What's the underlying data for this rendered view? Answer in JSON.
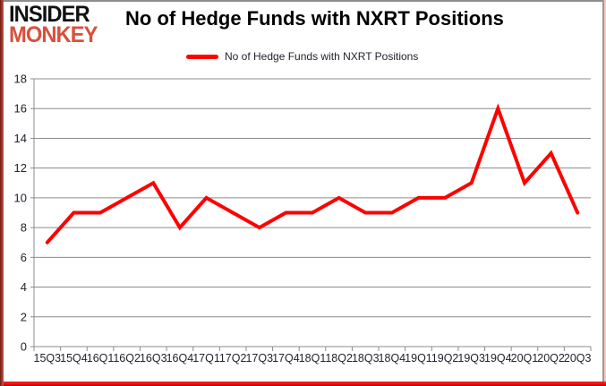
{
  "logo": {
    "line1": "INSIDER",
    "line2": "MONKEY"
  },
  "header": {
    "title": "No of Hedge Funds with NXRT Positions"
  },
  "legend": {
    "label": "No of Hedge Funds with NXRT Positions"
  },
  "chart_data": {
    "type": "line",
    "title": "No of Hedge Funds with NXRT Positions",
    "categories": [
      "15Q3",
      "15Q4",
      "16Q1",
      "16Q2",
      "16Q3",
      "16Q4",
      "17Q1",
      "17Q2",
      "17Q3",
      "17Q4",
      "18Q1",
      "18Q2",
      "18Q3",
      "18Q4",
      "19Q1",
      "19Q2",
      "19Q3",
      "19Q4",
      "20Q1",
      "20Q2",
      "20Q3"
    ],
    "series": [
      {
        "name": "No of Hedge Funds with NXRT Positions",
        "color": "#ff0000",
        "values": [
          7,
          9,
          9,
          10,
          11,
          8,
          10,
          9,
          8,
          9,
          9,
          10,
          9,
          9,
          10,
          10,
          11,
          16,
          11,
          13,
          9
        ]
      }
    ],
    "xlabel": "",
    "ylabel": "",
    "ylim": [
      0,
      18
    ],
    "yticks": [
      0,
      2,
      4,
      6,
      8,
      10,
      12,
      14,
      16,
      18
    ],
    "grid": true,
    "legend_position": "top",
    "colors": {
      "line": "#ff0000",
      "gridline": "#8c8c8c",
      "axis_text": "#22222e",
      "logo_red": "#d9503c",
      "title_text": "#000000"
    }
  }
}
